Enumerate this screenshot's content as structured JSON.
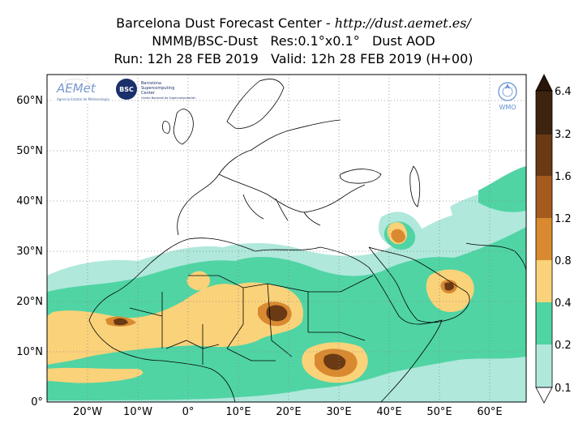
{
  "title": {
    "line1_prefix": "Barcelona Dust Forecast Center - ",
    "line1_url": "http://dust.aemet.es/",
    "line2": "NMMB/BSC-Dust   Res:0.1°x0.1°   Dust AOD",
    "line3": "Run: 12h 28 FEB 2019   Valid: 12h 28 FEB 2019 (H+00)"
  },
  "map": {
    "x_ticks": [
      "20°W",
      "10°W",
      "0°",
      "10°E",
      "20°E",
      "30°E",
      "40°E",
      "50°E",
      "60°E"
    ],
    "y_ticks": [
      "60°N",
      "50°N",
      "40°N",
      "30°N",
      "20°N",
      "10°N",
      "0°"
    ]
  },
  "colorbar": {
    "levels": [
      "0.1",
      "0.2",
      "0.4",
      "0.8",
      "1.2",
      "1.6",
      "3.2",
      "6.4"
    ],
    "colors": [
      "#b0e8dc",
      "#50d4a4",
      "#fad27a",
      "#f0b24e",
      "#d98a30",
      "#a55a1e",
      "#6a3a14",
      "#3c2410"
    ]
  },
  "logos": {
    "aemet": "AEMet",
    "aemet_sub": "Agencia Estatal de Meteorología",
    "bsc": "BSC",
    "bsc_name_1": "Barcelona",
    "bsc_name_2": "Supercomputing",
    "bsc_name_3": "Center",
    "bsc_sub": "Centro Nacional de Supercomputación",
    "wmo": "WMO"
  },
  "colors": {
    "ocean": "#ffffff",
    "land": "#ffffff",
    "borders": "#000000",
    "grid": "#888888"
  }
}
